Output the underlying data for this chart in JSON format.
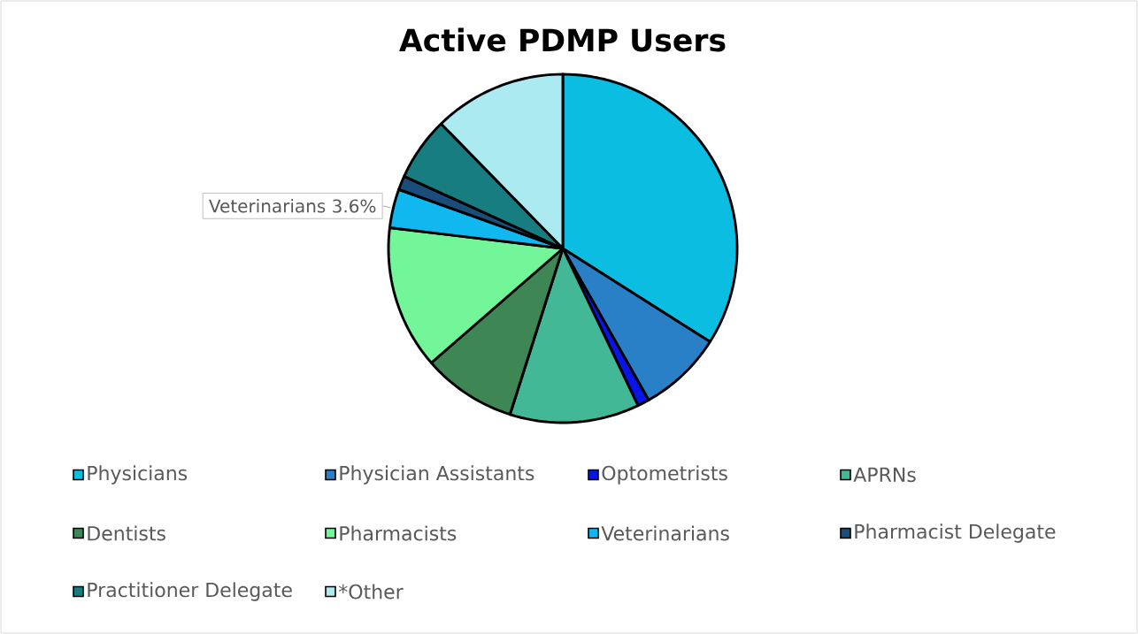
{
  "chart_data": {
    "type": "pie",
    "title": "Active PDMP Users",
    "categories": [
      "Physicians",
      "Physician Assistants",
      "Optometrists",
      "APRNs",
      "Dentists",
      "Pharmacists",
      "Veterinarians",
      "Pharmacist Delegate",
      "Practitioner Delegate",
      "*Other"
    ],
    "values": [
      34.0,
      7.8,
      1.1,
      12.0,
      8.7,
      13.3,
      3.6,
      1.3,
      5.9,
      12.3
    ],
    "colors": [
      "#0bbde0",
      "#2a80c6",
      "#0a14e6",
      "#43b897",
      "#3e8654",
      "#73f59a",
      "#10b8ef",
      "#1a4d7a",
      "#177d80",
      "#aaeaf0"
    ],
    "value_labels": [
      null,
      null,
      null,
      null,
      null,
      null,
      "3.6%",
      null,
      null,
      null
    ],
    "legend": "bottom"
  }
}
